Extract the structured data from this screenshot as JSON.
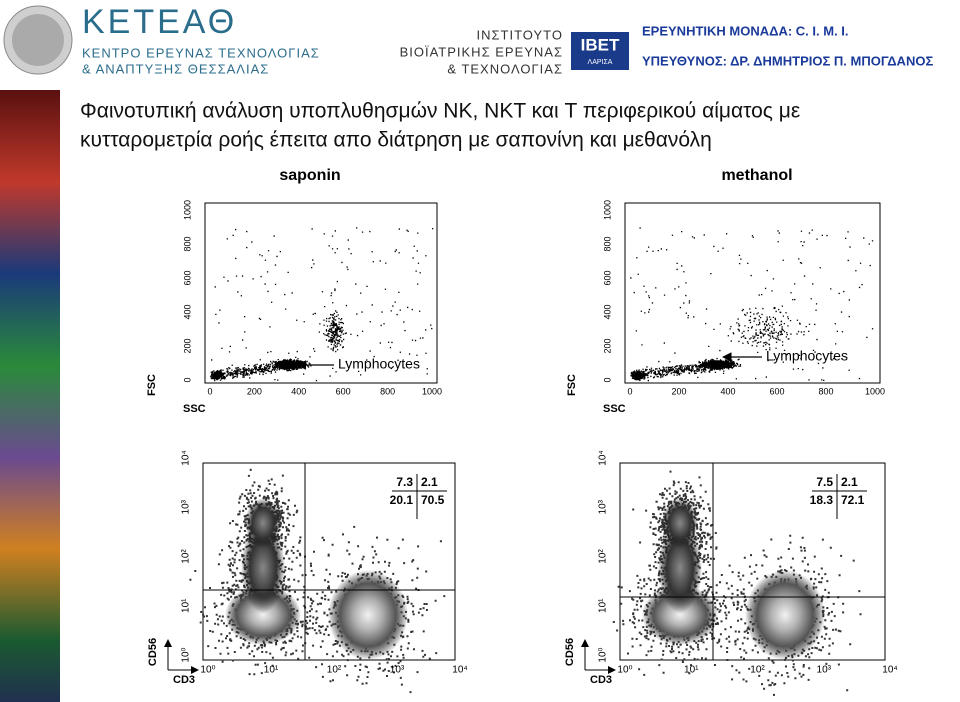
{
  "header": {
    "logo_title": "ΚΕΤΕΑΘ",
    "logo_sub1": "ΚΕΝΤΡΟ ΕΡΕΥΝΑΣ ΤΕΧΝΟΛΟΓΙΑΣ",
    "logo_sub2": "& ΑΝΑΠΤΥΞΗΣ ΘΕΣΣΑΛΙΑΣ",
    "inst1": "ΙΝΣΤΙΤΟΥΤΟ",
    "inst2": "ΒΙΟΪΑΤΡΙΚΗΣ ΕΡΕΥΝΑΣ",
    "inst3": "& ΤΕΧΝΟΛΟΓΙΑΣ",
    "ibet": "IBET",
    "ibet_sub": "ΛΑΡΙΣΑ",
    "unit": "ΕΡΕΥΝΗΤΙΚΗ ΜΟΝΑΔΑ: C. I. M. I.",
    "head": "ΥΠΕΥΘΥΝΟΣ: ΔΡ. ΔΗΜΗΤΡΙΟΣ Π. ΜΠΟΓΔΑΝΟΣ"
  },
  "title": {
    "line1": "Φαινοτυπική  ανάλυση  υποπλυθησμών  NK,  NKT  και  T  περιφερικού  αίματος  με",
    "line2": "κυτταρομετρία ροής έπειτα απο διάτρηση  με σαπονίνη και μεθανόλη"
  },
  "panels": [
    {
      "label": "saponin",
      "scatter": {
        "ylabel": "FSC",
        "xlabel": "SSC",
        "ticks": [
          "0",
          "200",
          "400",
          "600",
          "800",
          "1000"
        ],
        "gate_label": "Lymphocytes"
      },
      "flow": {
        "ylabel": "CD56",
        "xlabel": "CD3",
        "ticks": [
          "10⁰",
          "10¹",
          "10²",
          "10³",
          "10⁴"
        ]
      },
      "quadrants": [
        "7.3",
        "2.1",
        "20.1",
        "70.5"
      ]
    },
    {
      "label": "methanol",
      "scatter": {
        "ylabel": "FSC",
        "xlabel": "SSC",
        "ticks": [
          "0",
          "200",
          "400",
          "600",
          "800",
          "1000"
        ],
        "gate_label": "Lymphocytes"
      },
      "flow": {
        "ylabel": "CD56",
        "xlabel": "CD3",
        "ticks": [
          "10⁰",
          "10¹",
          "10²",
          "10³",
          "10⁴"
        ]
      },
      "quadrants": [
        "7.5",
        "2.1",
        "18.3",
        "72.1"
      ]
    }
  ]
}
